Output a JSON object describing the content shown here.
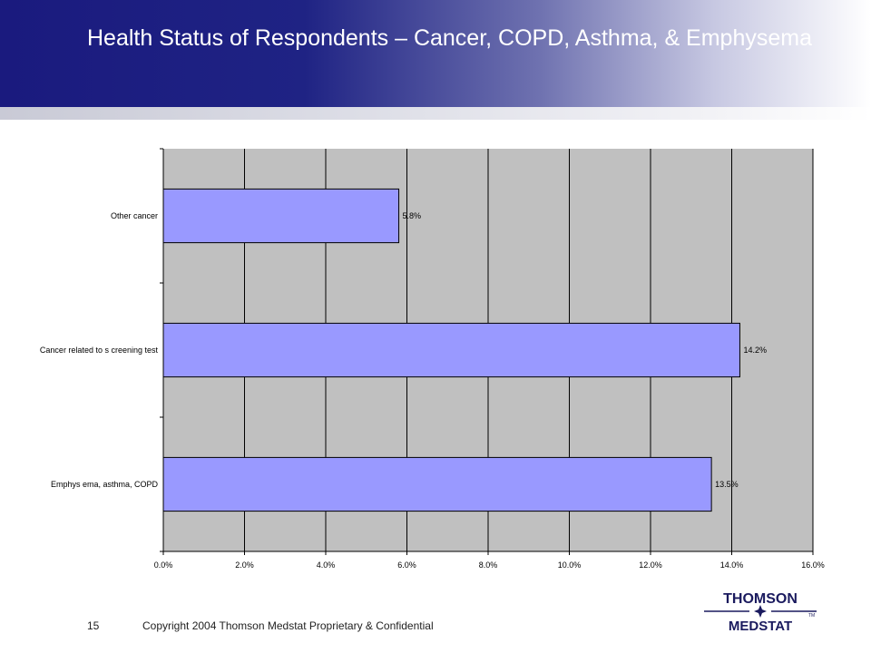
{
  "slide": {
    "title": "Health Status of Respondents – Cancer, COPD, Asthma, & Emphysema",
    "page_number": "15",
    "copyright": "Copyright 2004 Thomson Medstat  Proprietary & Confidential"
  },
  "logo": {
    "line1": "THOMSON",
    "line2": "MEDSTAT",
    "tm": "TM"
  },
  "colors": {
    "header_dark": "#1a1a7e",
    "plot_background": "#c0c0c0",
    "bar_fill": "#9999ff",
    "bar_stroke": "#000000",
    "logo_text": "#1a1a5e"
  },
  "chart_data": {
    "type": "bar",
    "orientation": "horizontal",
    "categories": [
      "Other cancer",
      "Cancer related to s creening test",
      "Emphys ema, asthma, COPD"
    ],
    "values": [
      5.8,
      14.2,
      13.5
    ],
    "data_labels": [
      "5.8%",
      "14.2%",
      "13.5%"
    ],
    "xlim": [
      0,
      16
    ],
    "xticks": [
      0,
      2,
      4,
      6,
      8,
      10,
      12,
      14,
      16
    ],
    "xtick_labels": [
      "0.0%",
      "2.0%",
      "4.0%",
      "6.0%",
      "8.0%",
      "10.0%",
      "12.0%",
      "14.0%",
      "16.0%"
    ],
    "grid": "vertical",
    "legend": "none",
    "title": "",
    "xlabel": "",
    "ylabel": ""
  }
}
